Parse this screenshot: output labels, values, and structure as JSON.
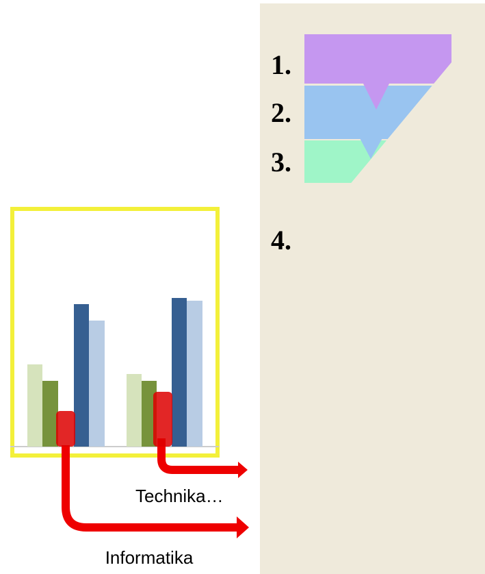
{
  "steps": [
    {
      "label": "1."
    },
    {
      "label": "2."
    },
    {
      "label": "3."
    },
    {
      "label": "4."
    }
  ],
  "labels": {
    "technika": "Technika…",
    "informatika": "Informatika"
  }
}
